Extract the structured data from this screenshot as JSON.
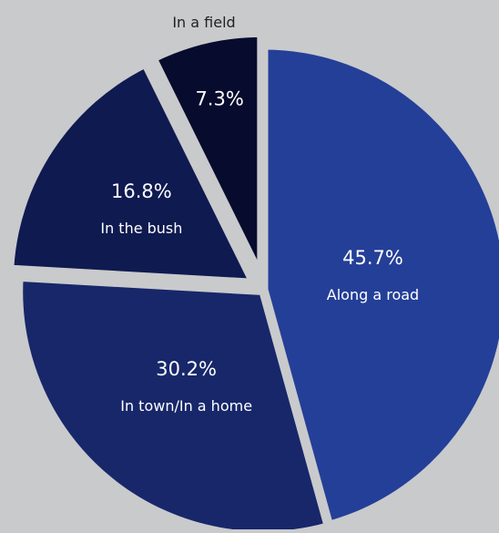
{
  "chart_data": {
    "type": "pie",
    "title": "",
    "slices": [
      {
        "label": "Along a road",
        "value": 45.7,
        "display": "45.7%",
        "color": "#243f97"
      },
      {
        "label": "In town/In a home",
        "value": 30.2,
        "display": "30.2%",
        "color": "#17276a"
      },
      {
        "label": "In the bush",
        "value": 16.8,
        "display": "16.8%",
        "color": "#0f1a50"
      },
      {
        "label": "In a field",
        "value": 7.3,
        "display": "7.3%",
        "color": "#070b2e"
      }
    ],
    "background": "#c9cacc",
    "label_color": "#ffffff",
    "outside_label_color": "#222222"
  }
}
